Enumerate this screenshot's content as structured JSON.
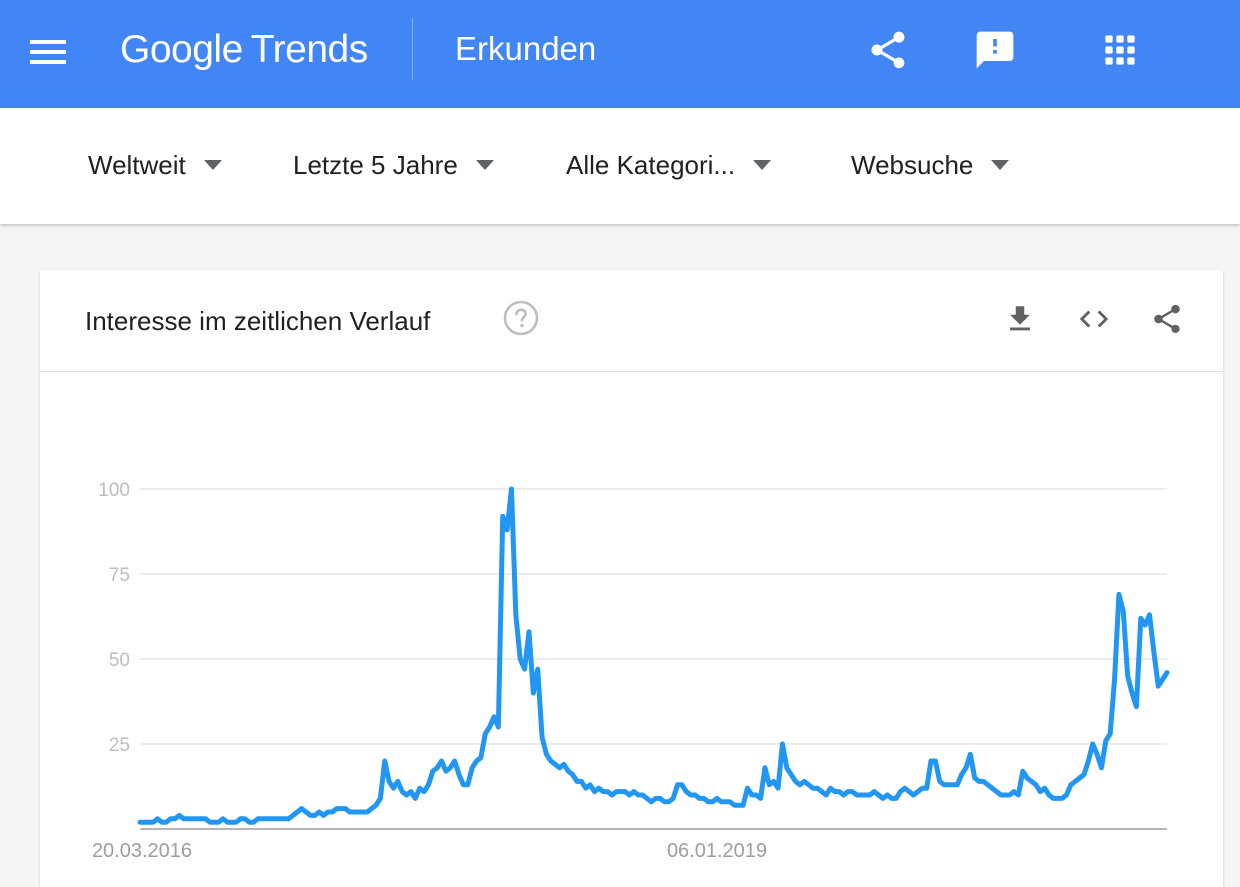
{
  "header": {
    "menu_icon": "hamburger-menu-icon",
    "logo_google": "Google",
    "logo_trends": "Trends",
    "page_title": "Erkunden",
    "icons": [
      "share-icon",
      "feedback-icon",
      "apps-grid-icon"
    ]
  },
  "filters": [
    {
      "label": "Weltweit"
    },
    {
      "label": "Letzte 5 Jahre"
    },
    {
      "label": "Alle Kategori..."
    },
    {
      "label": "Websuche"
    }
  ],
  "card": {
    "title": "Interesse im zeitlichen Verlauf",
    "icons": [
      "help-icon",
      "download-icon",
      "embed-code-icon",
      "share-icon"
    ]
  },
  "colors": {
    "header_bg": "#4285f4",
    "line": "#2196f3",
    "grid": "#e6e6e6",
    "tick_text": "#bdbdbd",
    "axis": "#9e9e9e"
  },
  "chart_data": {
    "type": "line",
    "title": "",
    "xlabel": "",
    "ylabel": "",
    "ylim": [
      0,
      100
    ],
    "yticks": [
      25,
      50,
      75,
      100
    ],
    "x_tick_labels": [
      "20.03.2016",
      "06.01.2019"
    ],
    "grid": true,
    "series": [
      {
        "values": [
          2,
          2,
          2,
          2,
          3,
          2,
          2,
          3,
          3,
          4,
          3,
          3,
          3,
          3,
          3,
          3,
          2,
          2,
          2,
          3,
          2,
          2,
          2,
          3,
          3,
          2,
          2,
          3,
          3,
          3,
          3,
          3,
          3,
          3,
          3,
          4,
          5,
          6,
          5,
          4,
          4,
          5,
          4,
          5,
          5,
          6,
          6,
          6,
          5,
          5,
          5,
          5,
          5,
          6,
          7,
          9,
          20,
          14,
          12,
          14,
          11,
          10,
          11,
          9,
          12,
          11,
          13,
          17,
          18,
          20,
          17,
          18,
          20,
          16,
          13,
          13,
          18,
          20,
          21,
          28,
          30,
          33,
          30,
          92,
          88,
          100,
          63,
          50,
          47,
          58,
          40,
          47,
          27,
          22,
          20,
          19,
          18,
          19,
          17,
          16,
          14,
          14,
          12,
          13,
          11,
          12,
          11,
          11,
          10,
          11,
          11,
          11,
          10,
          11,
          10,
          10,
          9,
          8,
          9,
          9,
          8,
          8,
          9,
          13,
          13,
          11,
          10,
          10,
          9,
          9,
          8,
          8,
          9,
          8,
          8,
          8,
          7,
          7,
          7,
          12,
          10,
          10,
          9,
          18,
          13,
          14,
          12,
          25,
          18,
          16,
          14,
          13,
          14,
          13,
          12,
          12,
          11,
          10,
          12,
          11,
          11,
          10,
          11,
          11,
          10,
          10,
          10,
          10,
          11,
          10,
          9,
          10,
          9,
          9,
          11,
          12,
          11,
          10,
          11,
          12,
          12,
          20,
          20,
          14,
          13,
          13,
          13,
          13,
          16,
          18,
          22,
          15,
          14,
          14,
          13,
          12,
          11,
          10,
          10,
          10,
          11,
          10,
          17,
          15,
          14,
          13,
          11,
          12,
          10,
          9,
          9,
          9,
          10,
          13,
          14,
          15,
          16,
          20,
          25,
          22,
          18,
          26,
          28,
          44,
          69,
          64,
          45,
          40,
          36,
          62,
          60,
          63,
          52,
          42,
          44,
          46
        ]
      }
    ]
  }
}
